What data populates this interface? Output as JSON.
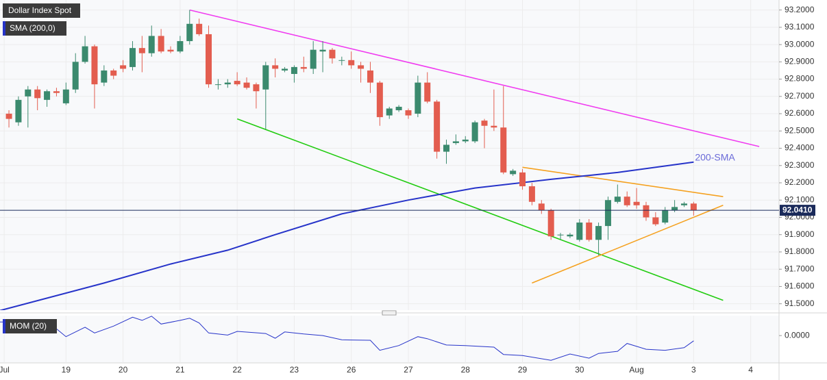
{
  "chart_data": {
    "type": "candlestick",
    "title": "Dollar Index Spot",
    "colors": {
      "up": "#3b8a6e",
      "down": "#e35d4f"
    },
    "open": [
      92.6,
      92.55,
      92.7,
      92.74,
      92.68,
      92.73,
      92.66,
      92.74,
      92.9,
      92.99,
      92.78,
      92.85,
      92.88,
      92.87,
      92.98,
      92.95,
      93.05,
      92.97,
      92.96,
      93.02,
      93.12,
      93.06,
      92.77,
      92.77,
      92.79,
      92.78,
      92.77,
      92.74,
      92.88,
      92.85,
      92.83,
      92.87,
      92.86,
      92.96,
      92.97,
      92.91,
      92.91,
      92.88,
      92.85,
      92.78,
      92.59,
      92.62,
      92.62,
      92.6,
      92.78,
      92.67,
      92.38,
      92.43,
      92.44,
      92.44,
      92.56,
      92.53,
      92.52,
      92.25,
      92.26,
      92.18,
      92.08,
      92.04,
      91.9,
      91.89,
      91.87,
      91.97,
      91.87,
      91.95,
      92.09,
      92.12,
      92.09,
      92.07,
      92.0,
      91.97,
      92.04,
      92.07,
      92.08
    ],
    "high": [
      92.62,
      92.7,
      92.76,
      92.76,
      92.74,
      92.75,
      92.78,
      92.95,
      93.05,
      93.0,
      92.88,
      92.86,
      92.91,
      93.02,
      93.05,
      93.11,
      93.09,
      92.99,
      93.05,
      93.2,
      93.15,
      93.11,
      92.8,
      92.8,
      92.84,
      92.81,
      92.78,
      92.9,
      92.92,
      92.87,
      92.88,
      92.93,
      93.02,
      93.02,
      92.98,
      92.93,
      92.96,
      92.9,
      92.9,
      92.79,
      92.64,
      92.65,
      92.63,
      92.82,
      92.84,
      92.68,
      92.45,
      92.48,
      92.47,
      92.56,
      92.57,
      92.74,
      92.76,
      92.28,
      92.28,
      92.2,
      92.1,
      92.05,
      91.91,
      91.91,
      91.99,
      91.99,
      91.97,
      92.12,
      92.19,
      92.15,
      92.17,
      92.09,
      92.03,
      92.06,
      92.1,
      92.09,
      92.09
    ],
    "low": [
      92.52,
      92.53,
      92.52,
      92.62,
      92.64,
      92.7,
      92.65,
      92.72,
      92.89,
      92.63,
      92.76,
      92.8,
      92.84,
      92.85,
      92.84,
      92.93,
      92.95,
      92.95,
      92.95,
      93.0,
      93.05,
      92.75,
      92.74,
      92.75,
      92.76,
      92.74,
      92.63,
      92.51,
      92.81,
      92.84,
      92.78,
      92.84,
      92.83,
      92.84,
      92.89,
      92.88,
      92.86,
      92.78,
      92.72,
      92.53,
      92.57,
      92.61,
      92.57,
      92.58,
      92.66,
      92.34,
      92.31,
      92.42,
      92.43,
      92.43,
      92.4,
      92.5,
      92.25,
      92.24,
      92.16,
      92.07,
      92.02,
      91.87,
      91.87,
      91.88,
      91.86,
      91.86,
      91.78,
      91.87,
      92.08,
      92.06,
      92.05,
      91.98,
      91.95,
      91.96,
      92.03,
      92.06,
      92.01
    ],
    "close": [
      92.57,
      92.68,
      92.74,
      92.69,
      92.73,
      92.72,
      92.74,
      92.9,
      92.99,
      92.77,
      92.85,
      92.82,
      92.86,
      92.98,
      92.95,
      93.05,
      92.96,
      92.96,
      93.02,
      93.12,
      93.06,
      92.77,
      92.77,
      92.78,
      92.77,
      92.75,
      92.73,
      92.88,
      92.86,
      92.86,
      92.87,
      92.86,
      92.97,
      92.97,
      92.92,
      92.91,
      92.88,
      92.86,
      92.78,
      92.58,
      92.63,
      92.64,
      92.59,
      92.78,
      92.67,
      92.38,
      92.42,
      92.44,
      92.45,
      92.55,
      92.53,
      92.52,
      92.26,
      92.27,
      92.18,
      92.09,
      92.04,
      91.89,
      91.9,
      91.9,
      91.97,
      91.87,
      91.95,
      92.1,
      92.12,
      92.07,
      92.07,
      92.0,
      91.96,
      92.04,
      92.06,
      92.08,
      92.04
    ],
    "xlim": [
      -0.94,
      80.98
    ],
    "xticks": [
      {
        "value": -0.5,
        "label": "Jul"
      },
      {
        "value": 6,
        "label": "19"
      },
      {
        "value": 12,
        "label": "20"
      },
      {
        "value": 18,
        "label": "21"
      },
      {
        "value": 24,
        "label": "22"
      },
      {
        "value": 30,
        "label": "23"
      },
      {
        "value": 36,
        "label": "26"
      },
      {
        "value": 42,
        "label": "27"
      },
      {
        "value": 48,
        "label": "28"
      },
      {
        "value": 54,
        "label": "29"
      },
      {
        "value": 60,
        "label": "30"
      },
      {
        "value": 66,
        "label": "Aug"
      },
      {
        "value": 72,
        "label": "3"
      },
      {
        "value": 78,
        "label": "4"
      }
    ],
    "ylim": [
      91.463,
      93.25
    ],
    "yticks": [
      {
        "value": 93.2,
        "label": "93.2000"
      },
      {
        "value": 93.1,
        "label": "93.1000"
      },
      {
        "value": 93.0,
        "label": "93.0000"
      },
      {
        "value": 92.9,
        "label": "92.9000"
      },
      {
        "value": 92.8,
        "label": "92.8000"
      },
      {
        "value": 92.7,
        "label": "92.7000"
      },
      {
        "value": 92.6,
        "label": "92.6000"
      },
      {
        "value": 92.5,
        "label": "92.5000"
      },
      {
        "value": 92.4,
        "label": "92.4000"
      },
      {
        "value": 92.3,
        "label": "92.3000"
      },
      {
        "value": 92.2,
        "label": "92.2000"
      },
      {
        "value": 92.1,
        "label": "92.1000"
      },
      {
        "value": 92.0,
        "label": "92.0000"
      },
      {
        "value": 91.9,
        "label": "91.9000"
      },
      {
        "value": 91.8,
        "label": "91.8000"
      },
      {
        "value": 91.7,
        "label": "91.7000"
      },
      {
        "value": 91.6,
        "label": "91.6000"
      },
      {
        "value": 91.5,
        "label": "91.5000"
      }
    ],
    "grid": true,
    "sma": {
      "name": "SMA (200,0)",
      "annotation": "200-SMA",
      "color": "#2633c9",
      "x": [
        -1,
        10,
        17,
        23,
        28,
        35,
        42,
        49,
        57,
        64,
        72
      ],
      "values": [
        91.46,
        91.62,
        91.73,
        91.81,
        91.9,
        92.02,
        92.1,
        92.17,
        92.22,
        92.26,
        92.32
      ]
    },
    "trendlines": [
      {
        "color": "#f03cf0",
        "x": [
          19,
          78.9
        ],
        "values": [
          93.2,
          92.41
        ]
      },
      {
        "color": "#22cc11",
        "x": [
          24,
          75.1
        ],
        "values": [
          92.57,
          91.52
        ]
      },
      {
        "color": "#f5a11f",
        "x": [
          54,
          75.1
        ],
        "values": [
          92.29,
          92.12
        ]
      },
      {
        "color": "#f5a11f",
        "x": [
          55,
          75.1
        ],
        "values": [
          91.62,
          92.07
        ]
      }
    ],
    "current_price": 92.041,
    "current_price_label": "92.0410",
    "momentum": {
      "name": "MOM (20)",
      "color": "#2633c9",
      "x": [
        -1,
        2,
        5,
        6,
        8,
        9,
        11,
        13,
        14,
        15,
        16,
        18,
        19,
        20,
        21,
        23,
        24,
        27,
        28,
        29,
        31,
        33,
        35,
        38,
        39,
        41,
        43,
        44,
        46,
        48,
        51,
        52,
        54,
        57,
        59,
        61,
        62,
        64,
        65,
        67,
        69,
        71,
        72
      ],
      "values": [
        0.26,
        0.26,
        0.13,
        -0.02,
        0.16,
        0.05,
        0.18,
        0.35,
        0.29,
        0.37,
        0.22,
        0.29,
        0.33,
        0.24,
        0.05,
        0.01,
        0.08,
        0.04,
        -0.05,
        0.07,
        0.03,
        0.0,
        -0.08,
        -0.09,
        -0.28,
        -0.19,
        -0.02,
        -0.06,
        -0.18,
        -0.19,
        -0.22,
        -0.36,
        -0.38,
        -0.47,
        -0.35,
        -0.43,
        -0.34,
        -0.3,
        -0.15,
        -0.26,
        -0.28,
        -0.23,
        -0.1
      ],
      "ylim": [
        -0.52,
        0.38
      ],
      "yticks": [
        {
          "value": 0,
          "label": "0.0000"
        }
      ]
    }
  }
}
